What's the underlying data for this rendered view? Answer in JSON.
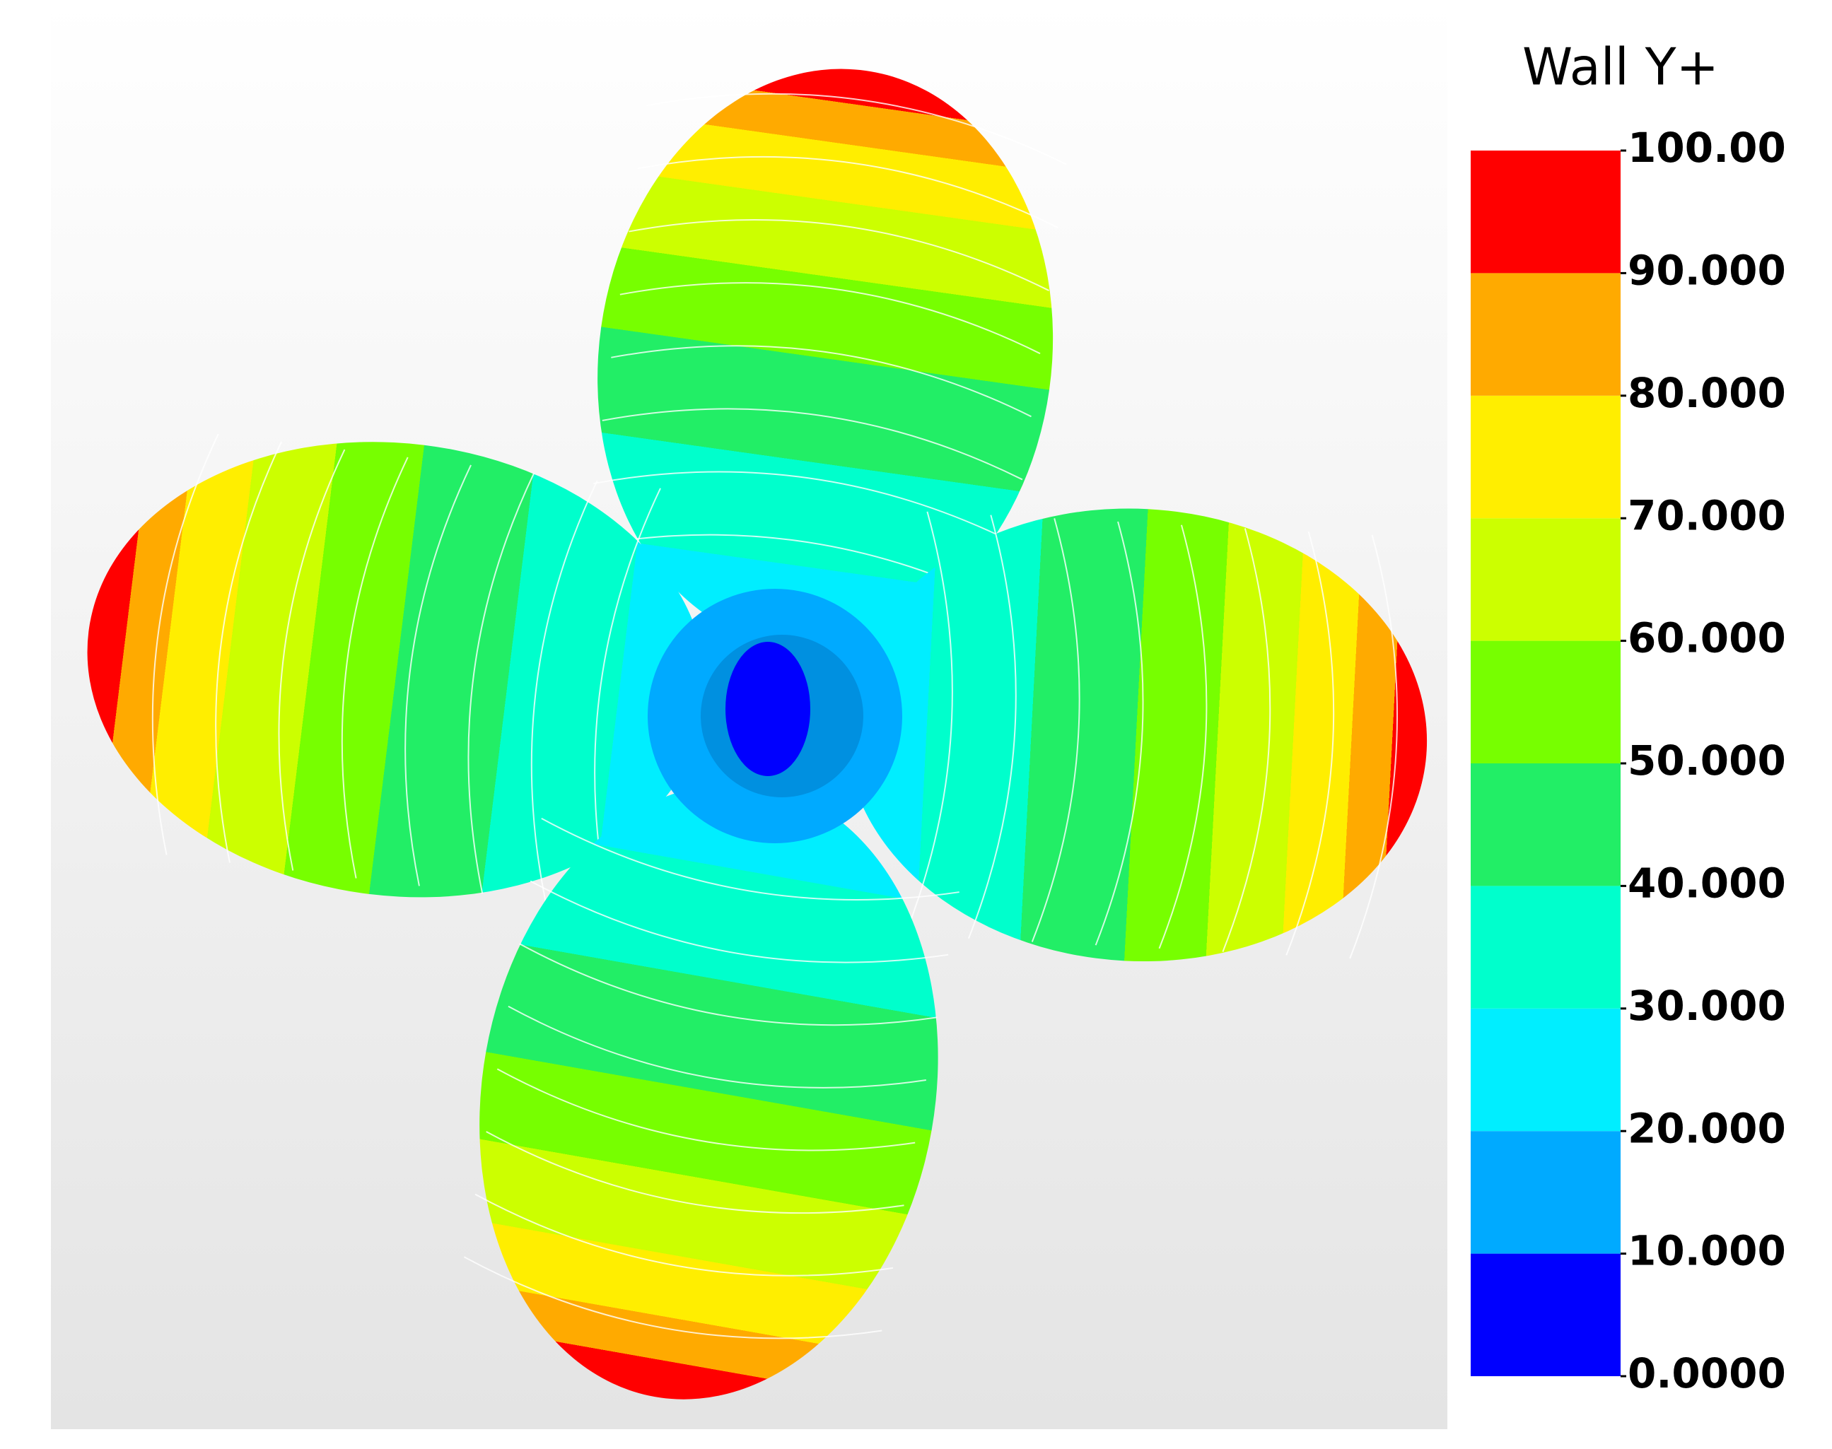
{
  "legend": {
    "title": "Wall Y+",
    "ticks": [
      {
        "value": 0,
        "label": "0.0000"
      },
      {
        "value": 10,
        "label": "10.000"
      },
      {
        "value": 20,
        "label": "20.000"
      },
      {
        "value": 30,
        "label": "30.000"
      },
      {
        "value": 40,
        "label": "40.000"
      },
      {
        "value": 50,
        "label": "50.000"
      },
      {
        "value": 60,
        "label": "60.000"
      },
      {
        "value": 70,
        "label": "70.000"
      },
      {
        "value": 80,
        "label": "80.000"
      },
      {
        "value": 90,
        "label": "90.000"
      },
      {
        "value": 100,
        "label": "100.00"
      }
    ],
    "colors": [
      "#0000ff",
      "#00aaff",
      "#00eeff",
      "#00ffcc",
      "#22ee66",
      "#77ff00",
      "#ccff00",
      "#ffee00",
      "#ffaa00",
      "#ff0000"
    ]
  }
}
